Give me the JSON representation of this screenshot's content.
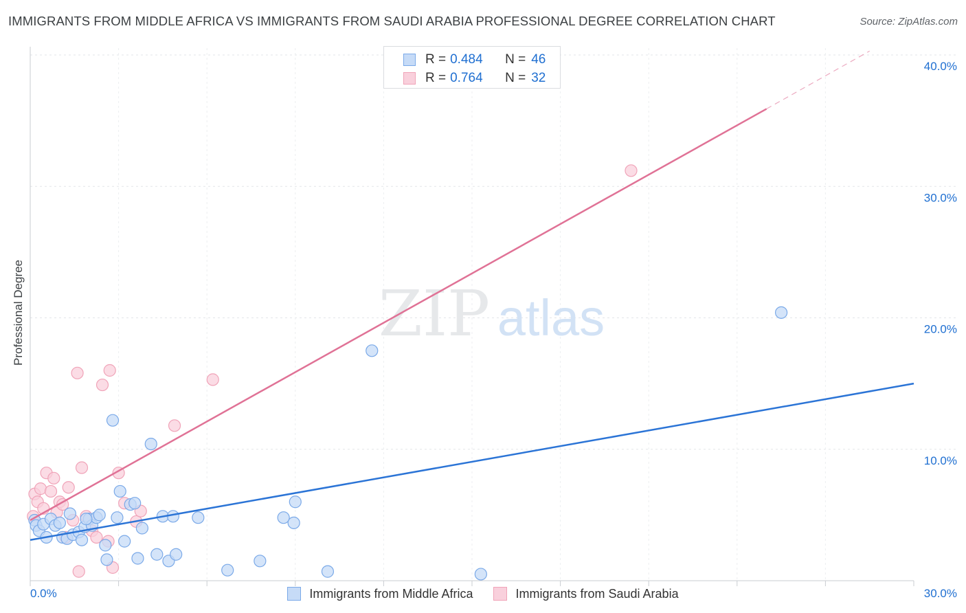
{
  "title": "IMMIGRANTS FROM MIDDLE AFRICA VS IMMIGRANTS FROM SAUDI ARABIA PROFESSIONAL DEGREE CORRELATION CHART",
  "source": "Source: ZipAtlas.com",
  "watermark": {
    "zip": "ZIP",
    "atlas": "atlas"
  },
  "legend_top": {
    "rows": [
      {
        "r_label": "R =",
        "r_value": "0.484",
        "n_label": "N =",
        "n_value": "46"
      },
      {
        "r_label": "R =",
        "r_value": "0.764",
        "n_label": "N =",
        "n_value": "32"
      }
    ]
  },
  "chart_data": {
    "type": "scatter",
    "title": "IMMIGRANTS FROM MIDDLE AFRICA VS IMMIGRANTS FROM SAUDI ARABIA PROFESSIONAL DEGREE CORRELATION CHART",
    "xlabel": "",
    "ylabel": "Professional Degree",
    "xlim": [
      0,
      30
    ],
    "ylim": [
      0,
      40
    ],
    "x_ticks": [
      {
        "value": 0,
        "label": "0.0%"
      },
      {
        "value": 30,
        "label": "30.0%"
      }
    ],
    "y_ticks": [
      {
        "value": 10,
        "label": "10.0%"
      },
      {
        "value": 20,
        "label": "20.0%"
      },
      {
        "value": 30,
        "label": "30.0%"
      },
      {
        "value": 40,
        "label": "40.0%"
      }
    ],
    "grid": true,
    "series": [
      {
        "name": "Immigrants from Middle Africa",
        "color": "#7aa9e8",
        "fill": "#c6dbf7",
        "trendline": {
          "x": [
            0,
            30
          ],
          "y": [
            3.1,
            15.0
          ],
          "color": "#2b74d6"
        },
        "points": [
          [
            0.15,
            4.6
          ],
          [
            0.2,
            4.2
          ],
          [
            0.3,
            3.8
          ],
          [
            0.45,
            4.3
          ],
          [
            0.55,
            3.3
          ],
          [
            0.7,
            4.7
          ],
          [
            0.85,
            4.2
          ],
          [
            1.0,
            4.4
          ],
          [
            1.1,
            3.3
          ],
          [
            1.25,
            3.2
          ],
          [
            1.35,
            5.1
          ],
          [
            1.45,
            3.5
          ],
          [
            1.65,
            3.7
          ],
          [
            1.75,
            3.1
          ],
          [
            1.85,
            4.1
          ],
          [
            2.0,
            4.7
          ],
          [
            2.1,
            4.2
          ],
          [
            2.25,
            4.8
          ],
          [
            2.35,
            5.0
          ],
          [
            2.55,
            2.7
          ],
          [
            2.6,
            1.6
          ],
          [
            2.8,
            12.2
          ],
          [
            2.95,
            4.8
          ],
          [
            3.05,
            6.8
          ],
          [
            3.2,
            3.0
          ],
          [
            3.4,
            5.8
          ],
          [
            3.55,
            5.9
          ],
          [
            3.65,
            1.7
          ],
          [
            3.8,
            4.0
          ],
          [
            4.1,
            10.4
          ],
          [
            4.3,
            2.0
          ],
          [
            4.5,
            4.9
          ],
          [
            4.7,
            1.5
          ],
          [
            4.85,
            4.9
          ],
          [
            4.95,
            2.0
          ],
          [
            5.7,
            4.8
          ],
          [
            6.7,
            0.8
          ],
          [
            7.8,
            1.5
          ],
          [
            8.6,
            4.8
          ],
          [
            8.95,
            4.4
          ],
          [
            9.0,
            6.0
          ],
          [
            10.1,
            0.7
          ],
          [
            11.6,
            17.5
          ],
          [
            15.3,
            0.5
          ],
          [
            25.5,
            20.4
          ],
          [
            1.9,
            4.7
          ]
        ]
      },
      {
        "name": "Immigrants from Saudi Arabia",
        "color": "#f0a3b8",
        "fill": "#f9d0dc",
        "trendline": {
          "x": [
            0,
            25
          ],
          "y": [
            4.6,
            35.9
          ],
          "dashed_to": [
            28.5,
            40.3
          ],
          "color": "#e07296"
        },
        "points": [
          [
            0.1,
            4.9
          ],
          [
            0.15,
            6.6
          ],
          [
            0.25,
            6.0
          ],
          [
            0.35,
            7.0
          ],
          [
            0.45,
            5.5
          ],
          [
            0.55,
            8.2
          ],
          [
            0.7,
            6.8
          ],
          [
            0.8,
            7.8
          ],
          [
            0.9,
            5.2
          ],
          [
            1.0,
            6.0
          ],
          [
            1.1,
            5.8
          ],
          [
            1.2,
            3.3
          ],
          [
            1.3,
            7.1
          ],
          [
            1.45,
            4.6
          ],
          [
            1.6,
            15.8
          ],
          [
            1.65,
            0.7
          ],
          [
            1.75,
            8.6
          ],
          [
            1.9,
            4.9
          ],
          [
            2.0,
            4.7
          ],
          [
            2.1,
            3.8
          ],
          [
            2.25,
            3.3
          ],
          [
            2.45,
            14.9
          ],
          [
            2.65,
            3.0
          ],
          [
            2.7,
            16.0
          ],
          [
            2.8,
            1.0
          ],
          [
            3.0,
            8.2
          ],
          [
            3.2,
            5.9
          ],
          [
            3.6,
            4.5
          ],
          [
            3.75,
            5.3
          ],
          [
            4.9,
            11.8
          ],
          [
            6.2,
            15.3
          ],
          [
            20.4,
            31.2
          ]
        ]
      }
    ]
  },
  "legend_bottom": {
    "items": [
      {
        "label": "Immigrants from Middle Africa"
      },
      {
        "label": "Immigrants from Saudi Arabia"
      }
    ]
  },
  "colors": {
    "blue_fill": "#c6dbf7",
    "blue_stroke": "#7aa9e8",
    "blue_line": "#2b74d6",
    "pink_fill": "#f9d0dc",
    "pink_stroke": "#f0a3b8",
    "pink_line": "#e07296",
    "tick_text": "#1f6fd1"
  }
}
